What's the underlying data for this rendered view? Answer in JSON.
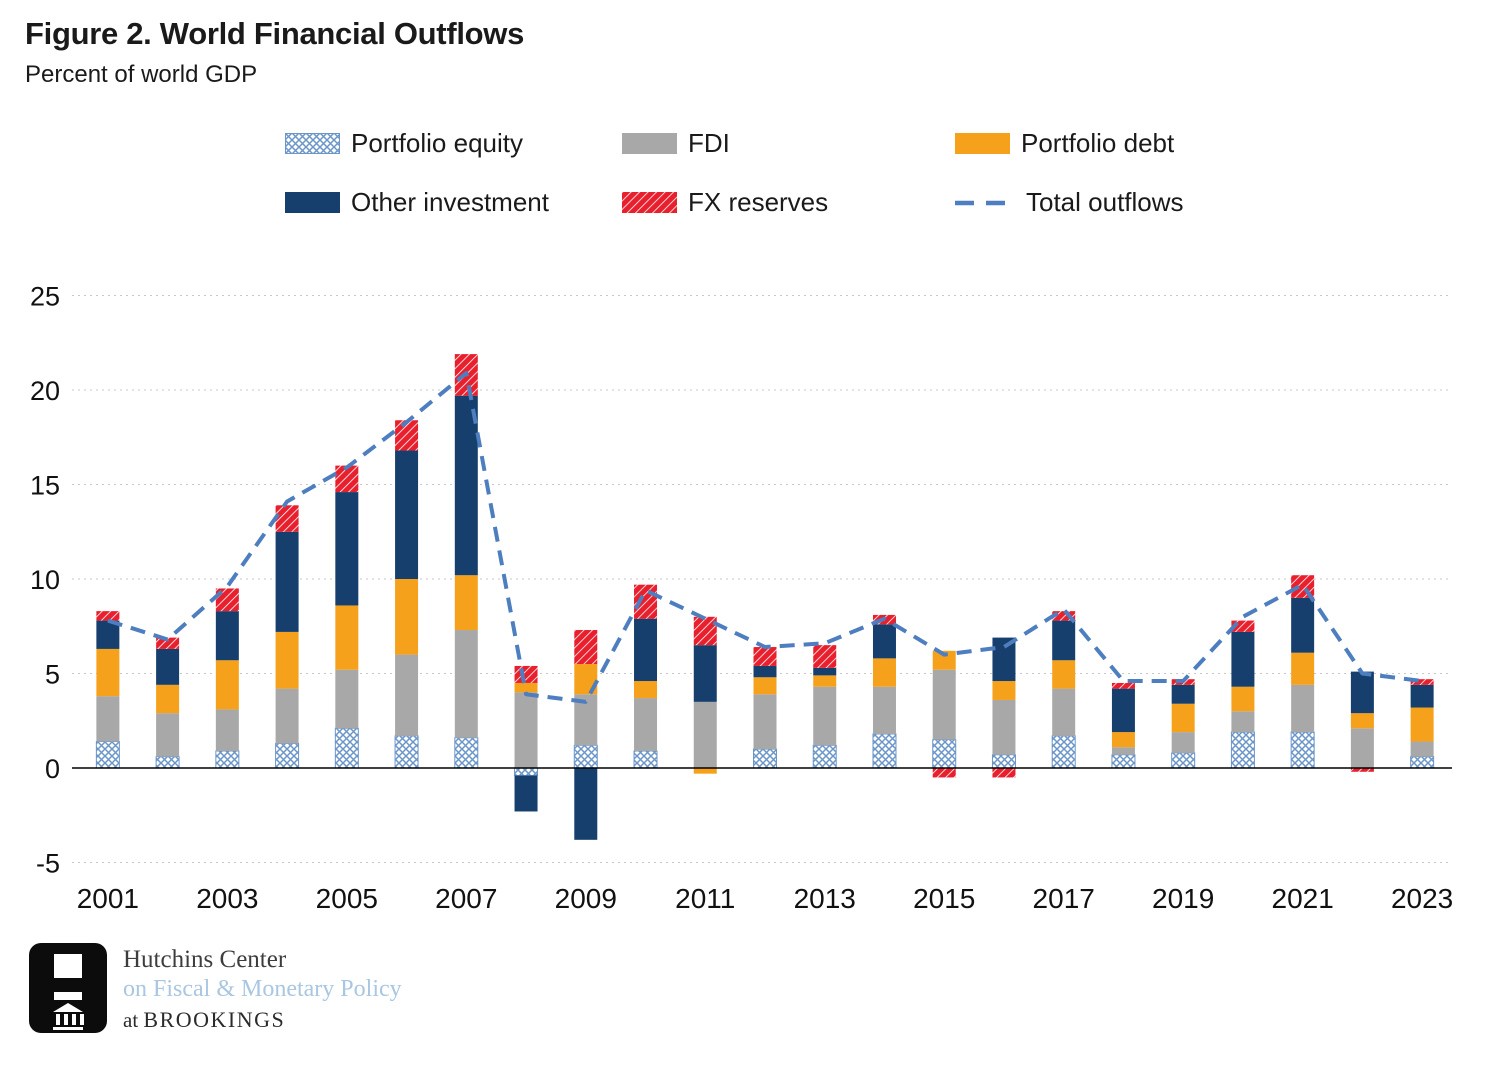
{
  "title": "Figure 2. World Financial Outflows",
  "subtitle": "Percent of world GDP",
  "legend": {
    "portfolio_equity": "Portfolio equity",
    "fdi": "FDI",
    "portfolio_debt": "Portfolio debt",
    "other_investment": "Other investment",
    "fx_reserves": "FX reserves",
    "total_outflows": "Total outflows"
  },
  "colors": {
    "portfolio_equity": "#a9c7e7",
    "portfolio_equity_hatch": "#6b96c9",
    "fdi": "#a8a8a8",
    "portfolio_debt": "#f6a11c",
    "other_investment": "#173f6e",
    "fx_reserves": "#e8202d",
    "total_line": "#4d7ebf",
    "gridline": "#c7c7c7"
  },
  "footer": {
    "line1": "Hutchins Center",
    "line2": "on Fiscal & Monetary Policy",
    "line3_prefix": "at",
    "line3_brand": "BROOKINGS"
  },
  "chart_data": {
    "type": "bar",
    "stacked": true,
    "title": "Figure 2. World Financial Outflows",
    "ylabel": "Percent of world GDP",
    "ylim": [
      -5,
      25
    ],
    "yticks": [
      -5,
      0,
      5,
      10,
      15,
      20,
      25
    ],
    "grid": "horizontal-dotted",
    "legend_position": "top",
    "categories": [
      2001,
      2002,
      2003,
      2004,
      2005,
      2006,
      2007,
      2008,
      2009,
      2010,
      2011,
      2012,
      2013,
      2014,
      2015,
      2016,
      2017,
      2018,
      2019,
      2020,
      2021,
      2022,
      2023
    ],
    "xticks": [
      2001,
      2003,
      2005,
      2007,
      2009,
      2011,
      2013,
      2015,
      2017,
      2019,
      2021,
      2023
    ],
    "series": [
      {
        "name": "Portfolio equity",
        "color": "#a9c7e7",
        "fill_pattern": "crosshatch",
        "values": [
          1.4,
          0.6,
          0.9,
          1.3,
          2.1,
          1.7,
          1.6,
          -0.4,
          1.2,
          0.9,
          0.0,
          1.0,
          1.2,
          1.8,
          1.5,
          0.7,
          1.7,
          0.7,
          0.8,
          1.9,
          1.9,
          0.0,
          0.6
        ]
      },
      {
        "name": "FDI",
        "color": "#a8a8a8",
        "fill_pattern": "solid",
        "values": [
          2.4,
          2.3,
          2.2,
          2.9,
          3.1,
          4.3,
          5.7,
          4.0,
          2.7,
          2.8,
          3.5,
          2.9,
          3.1,
          2.5,
          3.7,
          2.9,
          2.5,
          0.4,
          1.1,
          1.1,
          2.5,
          2.1,
          0.8
        ]
      },
      {
        "name": "Portfolio debt",
        "color": "#f6a11c",
        "fill_pattern": "solid",
        "values": [
          2.5,
          1.5,
          2.6,
          3.0,
          3.4,
          4.0,
          2.9,
          0.5,
          1.6,
          0.9,
          -0.3,
          0.9,
          0.6,
          1.5,
          1.0,
          1.0,
          1.5,
          0.8,
          1.5,
          1.3,
          1.7,
          0.8,
          1.8
        ]
      },
      {
        "name": "Other investment",
        "color": "#173f6e",
        "fill_pattern": "solid",
        "values": [
          1.5,
          1.9,
          2.6,
          5.3,
          6.0,
          6.8,
          9.5,
          -1.9,
          -3.8,
          3.3,
          3.0,
          0.6,
          0.4,
          1.8,
          0.0,
          2.3,
          2.1,
          2.3,
          1.0,
          2.9,
          2.9,
          2.2,
          1.2
        ]
      },
      {
        "name": "FX reserves",
        "color": "#e8202d",
        "fill_pattern": "diagonal-stripes",
        "values": [
          0.5,
          0.6,
          1.2,
          1.4,
          1.4,
          1.6,
          2.2,
          0.9,
          1.8,
          1.8,
          1.5,
          1.0,
          1.2,
          0.5,
          -0.5,
          -0.5,
          0.5,
          0.3,
          0.3,
          0.6,
          1.2,
          -0.2,
          0.3
        ]
      }
    ],
    "line_series": {
      "name": "Total outflows",
      "style": "dashed",
      "color": "#4d7ebf",
      "values": [
        7.8,
        6.8,
        9.6,
        14.1,
        15.9,
        18.3,
        20.9,
        3.9,
        3.5,
        9.4,
        7.9,
        6.4,
        6.6,
        7.9,
        6.0,
        6.4,
        8.4,
        4.6,
        4.6,
        8.0,
        9.7,
        5.0,
        4.6
      ]
    }
  }
}
